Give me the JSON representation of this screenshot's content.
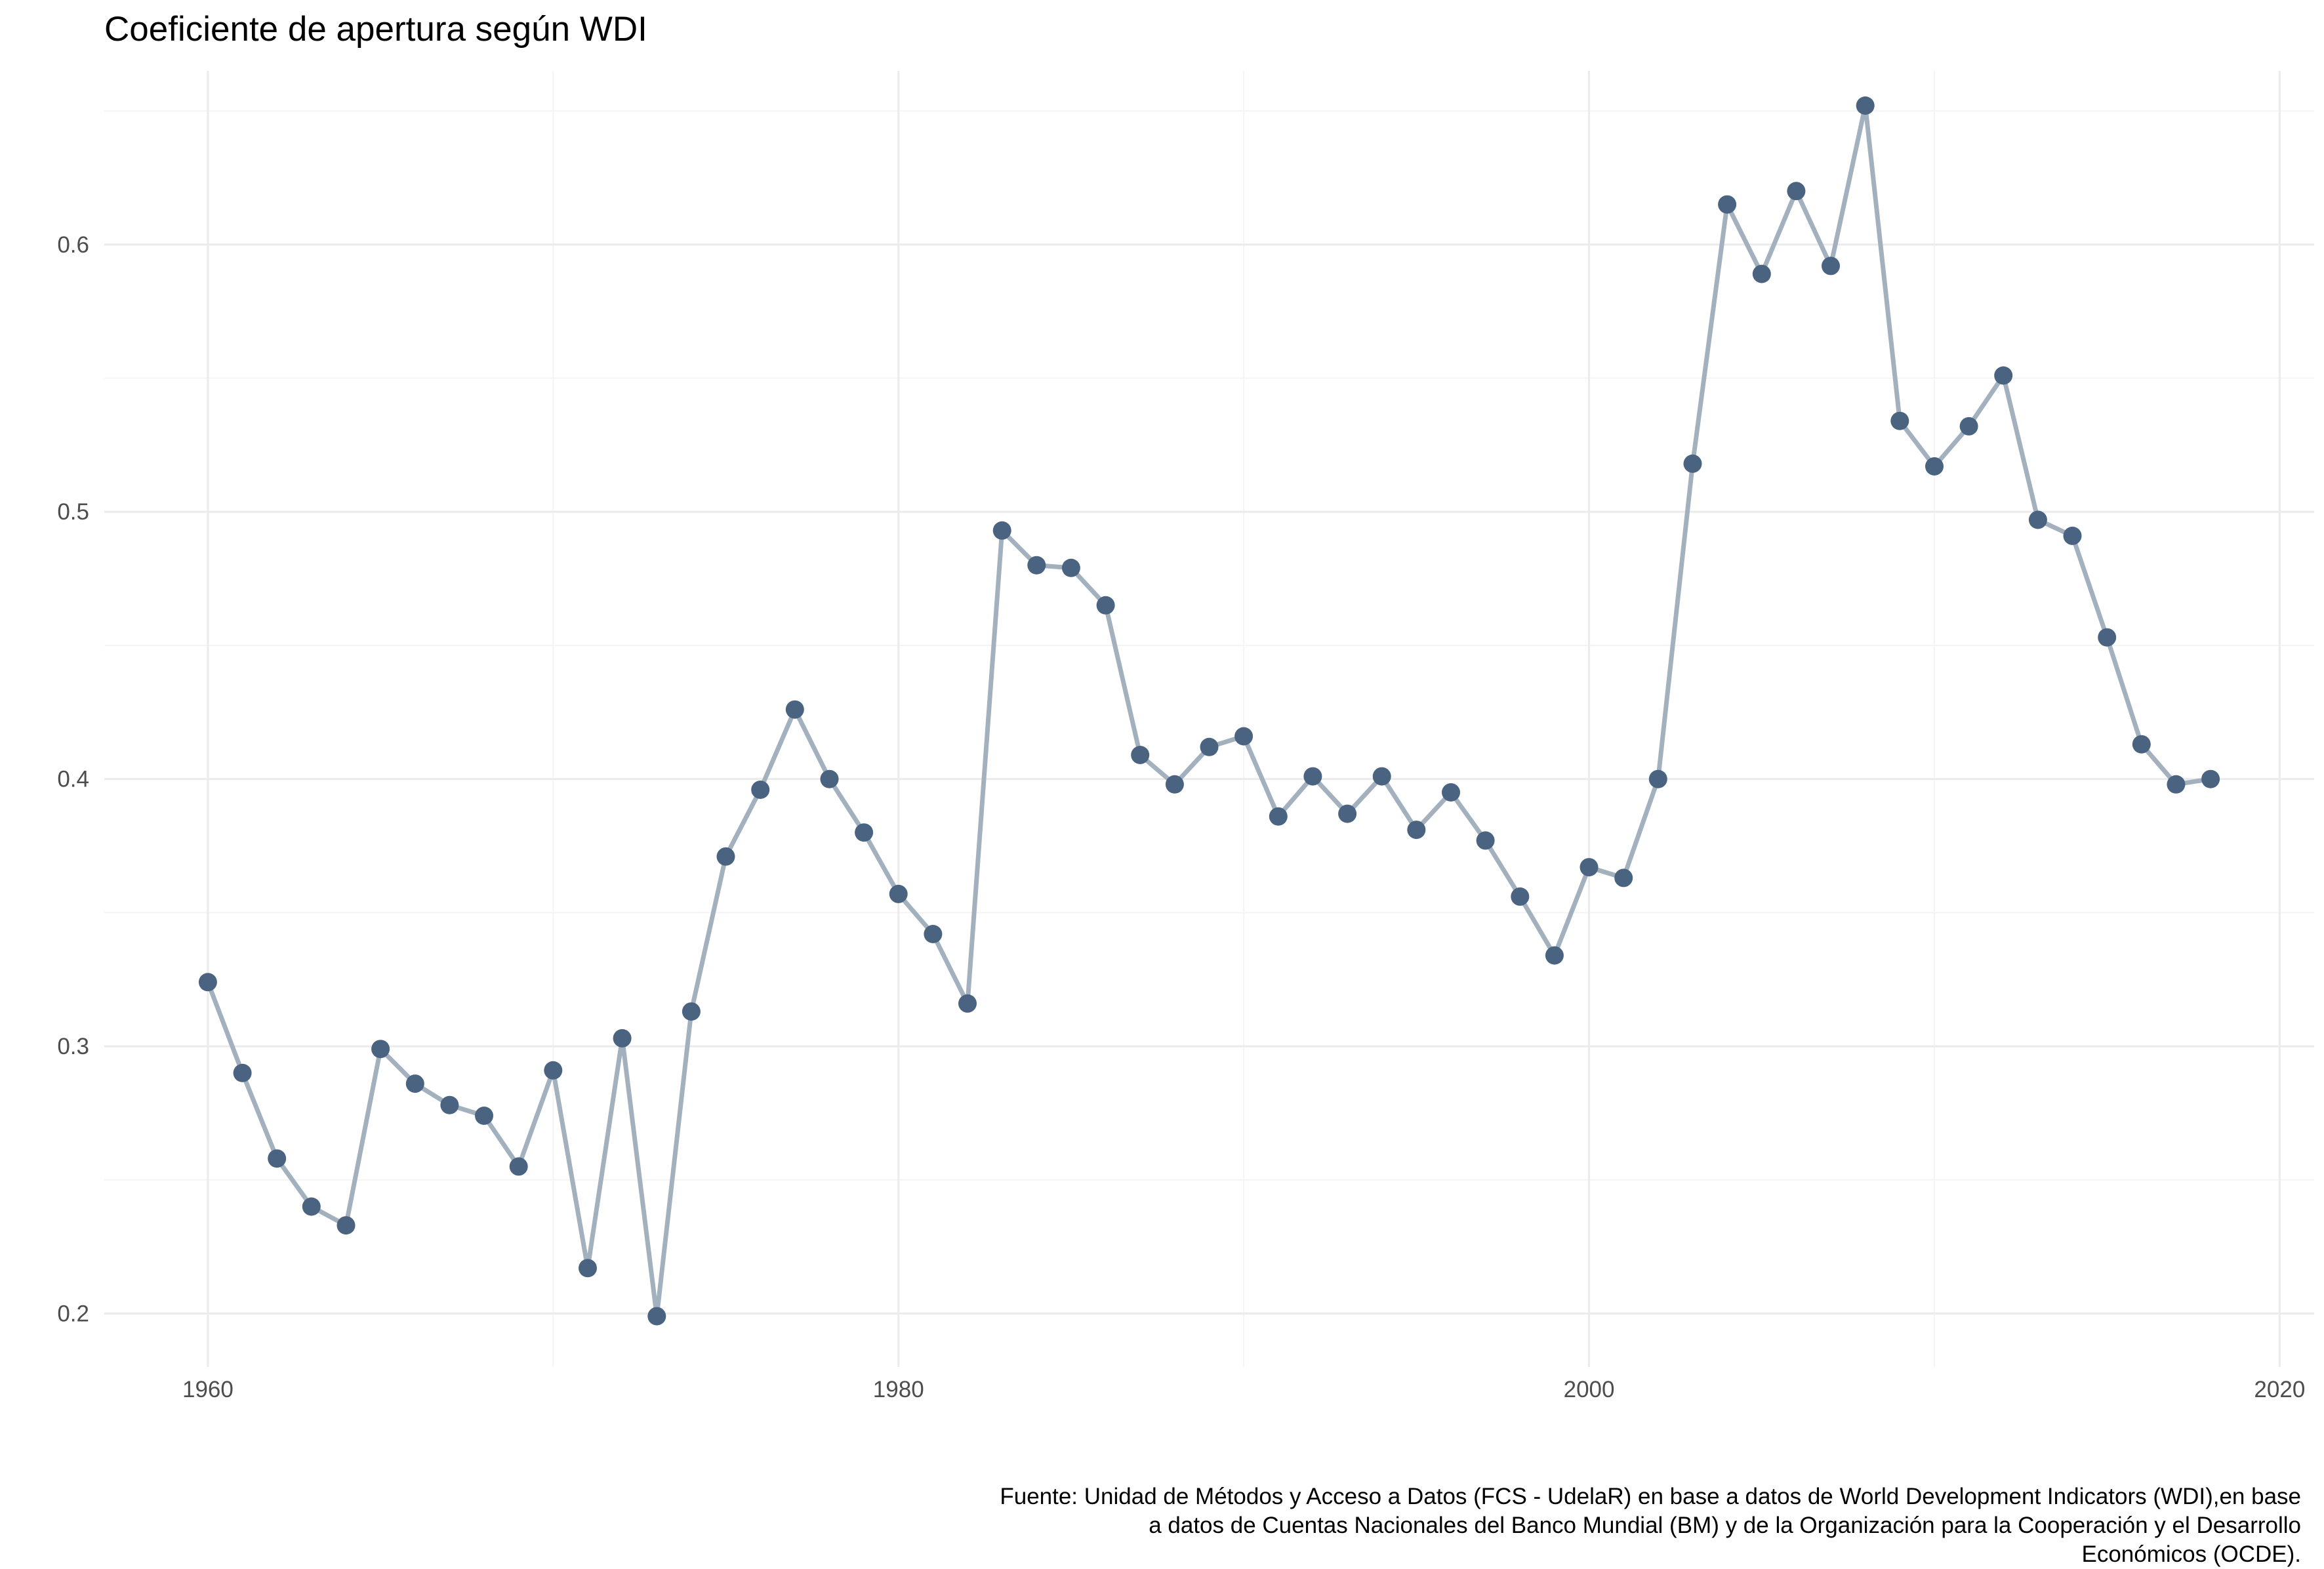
{
  "chart_data": {
    "type": "line",
    "title": "Coeficiente de apertura según WDI",
    "xlabel": "",
    "ylabel": "",
    "x_ticks": [
      1960,
      1980,
      2000,
      2020
    ],
    "y_ticks": [
      "0.2",
      "0.3",
      "0.4",
      "0.5",
      "0.6"
    ],
    "xlim": [
      1957,
      2021
    ],
    "ylim": [
      0.18,
      0.665
    ],
    "grid": true,
    "legend": "none",
    "colors": {
      "line": "#a3b1bf",
      "point": "#4a6380",
      "grid_major": "#ebebeb",
      "grid_minor": "#f4f4f4"
    },
    "series": [
      {
        "x": [
          1960,
          1961,
          1962,
          1963,
          1964,
          1965,
          1966,
          1967,
          1968,
          1969,
          1970,
          1971,
          1972,
          1973,
          1974,
          1975,
          1976,
          1977,
          1978,
          1979,
          1980,
          1981,
          1982,
          1983,
          1984,
          1985,
          1986,
          1987,
          1988,
          1989,
          1990,
          1991,
          1992,
          1993,
          1994,
          1995,
          1996,
          1997,
          1998,
          1999,
          2000,
          2001,
          2002,
          2003,
          2004,
          2005,
          2006,
          2007,
          2008,
          2009,
          2010,
          2011,
          2012,
          2013,
          2014,
          2015,
          2016,
          2017,
          2018
        ],
        "values": [
          0.324,
          0.29,
          0.258,
          0.24,
          0.233,
          0.299,
          0.286,
          0.278,
          0.274,
          0.255,
          0.291,
          0.217,
          0.303,
          0.199,
          0.313,
          0.371,
          0.396,
          0.426,
          0.4,
          0.38,
          0.357,
          0.342,
          0.316,
          0.493,
          0.48,
          0.479,
          0.465,
          0.409,
          0.398,
          0.412,
          0.416,
          0.386,
          0.401,
          0.387,
          0.401,
          0.381,
          0.395,
          0.377,
          0.356,
          0.334,
          0.367,
          0.363,
          0.4,
          0.518,
          0.615,
          0.589,
          0.62,
          0.592,
          0.652,
          0.534,
          0.517,
          0.532,
          0.551,
          0.497,
          0.491,
          0.453,
          0.413,
          0.398,
          0.4
        ]
      }
    ]
  },
  "caption": {
    "line1": "Fuente: Unidad de Métodos y Acceso a Datos (FCS - UdelaR) en base a datos de World Development Indicators (WDI),en base",
    "line2": "a datos de Cuentas Nacionales del Banco Mundial (BM) y de la Organización para la Cooperación y el Desarrollo",
    "line3": "Económicos (OCDE)."
  }
}
